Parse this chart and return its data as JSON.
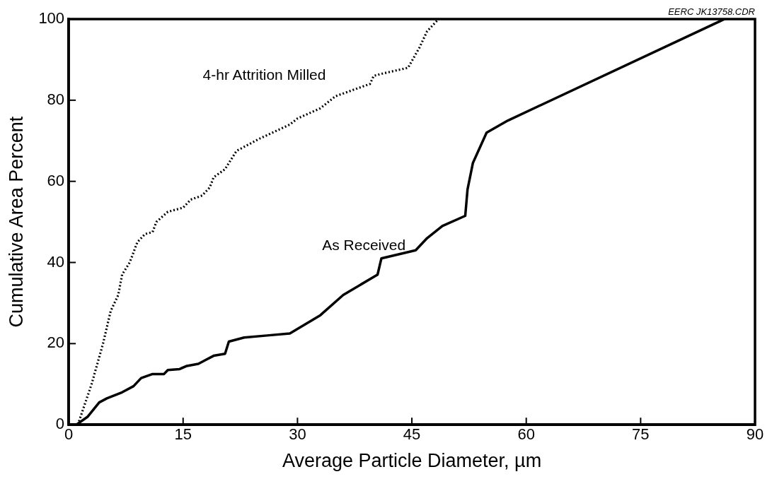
{
  "chart_data": {
    "type": "line",
    "xlabel": "Average Particle Diameter, µm",
    "ylabel": "Cumulative Area Percent",
    "annotations": [
      "EERC JK13758.CDR"
    ],
    "xlim": [
      0,
      90
    ],
    "xticks": [
      0,
      15,
      30,
      45,
      60,
      75,
      90
    ],
    "ylim": [
      0,
      100
    ],
    "yticks": [
      0,
      20,
      40,
      60,
      80,
      100
    ],
    "marker": "none",
    "series": [
      {
        "name": "4-hr Attrition Milled",
        "color": "#000000",
        "line_style": "dotted",
        "x": [
          1.2,
          3,
          4.5,
          5.5,
          6.5,
          7,
          8,
          9,
          10,
          11,
          11.5,
          13,
          15,
          16,
          17.5,
          18.5,
          19,
          20.5,
          22,
          25,
          29,
          30,
          33,
          35,
          38,
          39.5,
          40,
          41,
          44.5,
          46,
          47,
          48.5
        ],
        "values": [
          0,
          10,
          20,
          28,
          32,
          37,
          40,
          45,
          47,
          47.5,
          50,
          52.5,
          53.5,
          55.5,
          56.5,
          58.5,
          61,
          63,
          67.5,
          70.5,
          74,
          75.5,
          78,
          81,
          83,
          84,
          86,
          86.5,
          88,
          93,
          97,
          100
        ]
      },
      {
        "name": "As Received",
        "color": "#000000",
        "line_style": "solid",
        "x": [
          1,
          2.5,
          4,
          5,
          7,
          8.5,
          9.5,
          11,
          12.5,
          13,
          14.5,
          15.5,
          17,
          18,
          19,
          20.5,
          21,
          23,
          26,
          29,
          33,
          36,
          40.5,
          41,
          45.5,
          47,
          49,
          52,
          52.3,
          53,
          54.8,
          57.6,
          86
        ],
        "values": [
          0,
          2,
          5.5,
          6.5,
          8,
          9.5,
          11.5,
          12.5,
          12.5,
          13.5,
          13.7,
          14.5,
          15,
          16,
          17,
          17.5,
          20.5,
          21.5,
          22,
          22.5,
          27,
          32,
          37,
          41,
          43,
          46,
          49,
          51.5,
          58,
          64.5,
          72,
          75,
          100
        ]
      }
    ]
  }
}
